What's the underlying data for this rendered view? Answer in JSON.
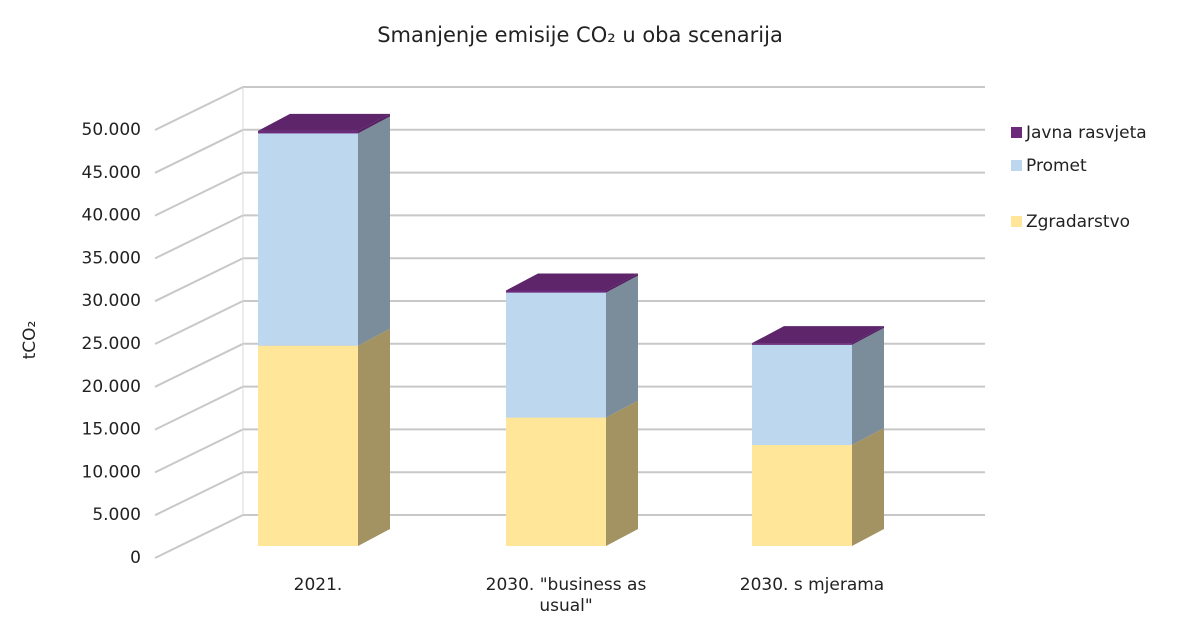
{
  "chart_data": {
    "type": "bar3d_stacked",
    "title": "Smanjenje emisije CO₂ u oba scenarija",
    "y_label": "tCO₂",
    "categories": [
      "2021.",
      "2030. \"business as usual\"",
      "2030. s mjerama"
    ],
    "series": [
      {
        "name": "Zgradarstvo",
        "color": "#ffe699",
        "values": [
          23400,
          15000,
          11800
        ]
      },
      {
        "name": "Promet",
        "color": "#bdd7ee",
        "values": [
          24800,
          14600,
          11700
        ]
      },
      {
        "name": "Javna rasvjeta",
        "color": "#6b2a7a",
        "values": [
          300,
          250,
          200
        ]
      }
    ],
    "ylim": [
      0,
      50000
    ],
    "yticks": [
      0,
      {
        "value": 5000,
        "label": "5.000"
      },
      {
        "value": 10000,
        "label": "10.000"
      },
      {
        "value": 15000,
        "label": "15.000"
      },
      {
        "value": 20000,
        "label": "20.000"
      },
      {
        "value": 25000,
        "label": "25.000"
      },
      {
        "value": 30000,
        "label": "30.000"
      },
      {
        "value": 35000,
        "label": "35.000"
      },
      {
        "value": 40000,
        "label": "40.000"
      },
      {
        "value": 45000,
        "label": "45.000"
      },
      {
        "value": 50000,
        "label": "50.000"
      }
    ],
    "grid": true,
    "legend": "right"
  }
}
